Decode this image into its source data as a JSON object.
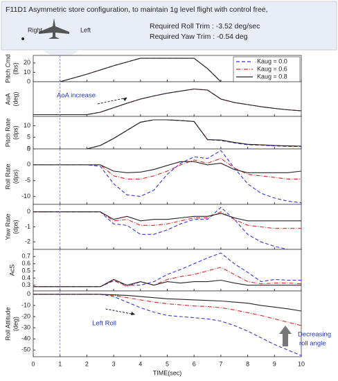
{
  "header": {
    "title": "F11D1 Asymmetric store configuration, to maintain 1g level flight with control free,",
    "left_label": "Right",
    "right_label": "Left",
    "trims": [
      "Required Roll Trim  : -3.52 deg/sec",
      "Required Yaw Trim  : -0.54 deg"
    ]
  },
  "time_marker": 1,
  "chart_data": [
    {
      "type": "line",
      "ylabel": [
        "Pitch Cmd",
        "(lbs)"
      ],
      "xlim": [
        0,
        10
      ],
      "ylim": [
        0,
        28
      ],
      "yticks": [
        0,
        10,
        20
      ],
      "legend": "upper right",
      "x": [
        0,
        0.5,
        1,
        1.5,
        2,
        2.5,
        3,
        3.5,
        4,
        4.5,
        5,
        5.5,
        6,
        6.5,
        7,
        7.5,
        8,
        8.5,
        9,
        9.5,
        10
      ],
      "series": [
        {
          "name": "Kaug = 0.0",
          "color": "#3333dd",
          "dash": "5,3",
          "values": [
            0,
            0,
            0,
            4,
            8,
            12.5,
            17,
            21,
            25,
            25,
            25,
            25,
            25,
            14,
            0,
            0,
            0,
            0,
            0,
            0,
            0
          ]
        },
        {
          "name": "Kaug = 0.6",
          "color": "#dd2222",
          "dash": "6,2,1,2",
          "values": [
            0,
            0,
            0,
            4,
            8,
            12.5,
            17,
            21,
            25,
            25,
            25,
            25,
            25,
            14,
            0,
            0,
            0,
            0,
            0,
            0,
            0
          ]
        },
        {
          "name": "Kaug = 0.8",
          "color": "#222222",
          "dash": "",
          "values": [
            0,
            0,
            0,
            4,
            8,
            12.5,
            17,
            21,
            25,
            25,
            25,
            25,
            25,
            14,
            0,
            0,
            0,
            0,
            0,
            0,
            0
          ]
        }
      ]
    },
    {
      "type": "line",
      "ylabel": [
        "AoA",
        "(deg)"
      ],
      "xlim": [
        0,
        10
      ],
      "ylim": [
        0,
        10
      ],
      "annotation": "AoA increase",
      "x": [
        0,
        0.5,
        1,
        1.5,
        2,
        2.5,
        3,
        3.5,
        4,
        4.5,
        5,
        5.5,
        6,
        6.5,
        7,
        7.5,
        8,
        8.5,
        9,
        9.5,
        10
      ],
      "series": [
        {
          "color": "#3333dd",
          "dash": "5,3",
          "values": [
            0.5,
            0.5,
            0.5,
            0.5,
            0.5,
            1.2,
            2.5,
            3.8,
            5,
            5.9,
            6.7,
            7.3,
            7.9,
            7.6,
            5,
            4,
            3.4,
            2.8,
            2.3,
            1.9,
            1.6
          ]
        },
        {
          "color": "#dd2222",
          "dash": "6,2,1,2",
          "values": [
            0.5,
            0.5,
            0.5,
            0.5,
            0.5,
            1.2,
            2.5,
            3.8,
            5,
            5.9,
            6.7,
            7.3,
            7.9,
            7.6,
            5,
            4,
            3.4,
            2.8,
            2.3,
            1.9,
            1.6
          ]
        },
        {
          "color": "#222222",
          "dash": "",
          "values": [
            0.5,
            0.5,
            0.5,
            0.5,
            0.5,
            1.2,
            2.5,
            3.8,
            5,
            5.9,
            6.7,
            7.3,
            7.9,
            7.6,
            5,
            4,
            3.4,
            2.8,
            2.3,
            1.9,
            1.6
          ]
        }
      ]
    },
    {
      "type": "line",
      "ylabel": [
        "Pitch Rate",
        "(dps)"
      ],
      "xlim": [
        0,
        10
      ],
      "ylim": [
        0,
        14
      ],
      "yticks": [
        0,
        5,
        10
      ],
      "x": [
        0,
        0.5,
        1,
        1.5,
        2,
        2.5,
        3,
        3.5,
        4,
        4.5,
        5,
        5.5,
        6,
        6.5,
        7,
        7.5,
        8,
        8.5,
        9,
        9.5,
        10
      ],
      "series": [
        {
          "color": "#3333dd",
          "dash": "5,3",
          "values": [
            0,
            0,
            0,
            0,
            0,
            1.5,
            4.5,
            8,
            11.5,
            12.5,
            12.5,
            12.2,
            11.8,
            4,
            3.6,
            2.6,
            1.8,
            1.6,
            1.3,
            1.1,
            1
          ]
        },
        {
          "color": "#dd2222",
          "dash": "6,2,1,2",
          "values": [
            0,
            0,
            0,
            0,
            0,
            1.5,
            4.5,
            8,
            11.5,
            12.5,
            12.5,
            12.2,
            11.8,
            4,
            3.8,
            2.8,
            2,
            1.8,
            1.5,
            1.3,
            1.2
          ]
        },
        {
          "color": "#222222",
          "dash": "",
          "values": [
            0,
            0,
            0,
            0,
            0,
            1.5,
            4.5,
            8,
            11.5,
            12.5,
            12.5,
            12.2,
            11.8,
            4,
            3.8,
            2.8,
            2,
            1.8,
            1.5,
            1.3,
            1.2
          ]
        }
      ]
    },
    {
      "type": "line",
      "ylabel": [
        "Roll Rate",
        "(dps)"
      ],
      "xlim": [
        0,
        10
      ],
      "ylim": [
        -12.5,
        5
      ],
      "yticks": [
        5,
        0,
        -5,
        -10
      ],
      "x": [
        0,
        0.5,
        1,
        1.5,
        2,
        2.5,
        3,
        3.5,
        4,
        4.5,
        5,
        5.5,
        6,
        6.5,
        7,
        7.5,
        8,
        8.5,
        9,
        9.5,
        10
      ],
      "series": [
        {
          "color": "#3333dd",
          "dash": "5,3",
          "values": [
            0,
            0,
            0,
            0,
            0,
            -0.5,
            -6,
            -9.5,
            -10,
            -8,
            -3,
            0.5,
            2.5,
            2,
            4.5,
            -1,
            -6,
            -9,
            -10.5,
            -11.5,
            -12
          ]
        },
        {
          "color": "#dd2222",
          "dash": "6,2,1,2",
          "values": [
            0,
            0,
            0,
            0,
            0,
            0,
            -3.5,
            -4.5,
            -4.5,
            -3.5,
            -2,
            0,
            1.5,
            0.5,
            2,
            -1,
            -3,
            -3.5,
            -4,
            -4.5,
            -4.5
          ]
        },
        {
          "color": "#222222",
          "dash": "",
          "values": [
            0,
            0,
            0,
            0,
            0,
            0,
            -2,
            -2.5,
            -2.3,
            -1.5,
            -0.2,
            1,
            1,
            0,
            0.5,
            -1.5,
            -2.5,
            -2.5,
            -2.5,
            -2.5,
            -2
          ]
        }
      ]
    },
    {
      "type": "line",
      "ylabel": [
        "Yaw Rate",
        "(dps)"
      ],
      "xlim": [
        0,
        10
      ],
      "ylim": [
        -2.5,
        0.5
      ],
      "yticks": [
        0,
        -1,
        -2
      ],
      "x": [
        0,
        0.5,
        1,
        1.5,
        2,
        2.5,
        3,
        3.5,
        4,
        4.5,
        5,
        5.5,
        6,
        6.5,
        7,
        7.5,
        8,
        8.5,
        9,
        9.5,
        10
      ],
      "series": [
        {
          "color": "#3333dd",
          "dash": "5,3",
          "values": [
            0,
            0,
            0,
            0,
            0,
            0,
            -0.8,
            -0.9,
            -1.5,
            -1.5,
            -1.2,
            -0.8,
            -0.5,
            -0.5,
            0.3,
            -0.5,
            -1.5,
            -2,
            -2.3,
            -2.5,
            -2.5
          ]
        },
        {
          "color": "#dd2222",
          "dash": "6,2,1,2",
          "values": [
            0,
            0,
            0,
            0,
            0,
            0,
            -0.6,
            -0.5,
            -0.9,
            -0.9,
            -0.8,
            -0.6,
            -0.4,
            -0.4,
            0,
            -0.5,
            -0.9,
            -1,
            -1.1,
            -1.1,
            -1.1
          ]
        },
        {
          "color": "#222222",
          "dash": "",
          "values": [
            0,
            0,
            0,
            0,
            0,
            0,
            -0.5,
            -0.3,
            -0.6,
            -0.5,
            -0.5,
            -0.4,
            -0.3,
            -0.3,
            -0.1,
            -0.4,
            -0.6,
            -0.6,
            -0.6,
            -0.6,
            -0.6
          ]
        }
      ]
    },
    {
      "type": "line",
      "ylabel": [
        "AcS"
      ],
      "xlim": [
        0,
        10
      ],
      "ylim": [
        0.22,
        0.8
      ],
      "yticks": [
        0.3,
        0.4,
        0.5,
        0.6,
        0.7
      ],
      "x": [
        0,
        0.5,
        1,
        1.5,
        2,
        2.5,
        3,
        3.5,
        4,
        4.5,
        5,
        5.5,
        6,
        6.5,
        7,
        7.5,
        8,
        8.5,
        9,
        9.5,
        10
      ],
      "series": [
        {
          "color": "#3333dd",
          "dash": "5,3",
          "values": [
            0.28,
            0.28,
            0.28,
            0.28,
            0.28,
            0.28,
            0.36,
            0.3,
            0.3,
            0.35,
            0.45,
            0.52,
            0.6,
            0.68,
            0.75,
            0.6,
            0.48,
            0.35,
            0.38,
            0.37,
            0.37
          ]
        },
        {
          "color": "#dd2222",
          "dash": "6,2,1,2",
          "values": [
            0.28,
            0.28,
            0.28,
            0.28,
            0.28,
            0.28,
            0.37,
            0.28,
            0.35,
            0.3,
            0.38,
            0.42,
            0.45,
            0.5,
            0.55,
            0.45,
            0.35,
            0.32,
            0.33,
            0.33,
            0.32
          ]
        },
        {
          "color": "#222222",
          "dash": "",
          "values": [
            0.28,
            0.28,
            0.28,
            0.28,
            0.28,
            0.28,
            0.38,
            0.3,
            0.35,
            0.3,
            0.35,
            0.33,
            0.35,
            0.35,
            0.37,
            0.33,
            0.3,
            0.3,
            0.3,
            0.3,
            0.3
          ]
        }
      ]
    },
    {
      "type": "line",
      "ylabel": [
        "Roll Attitude",
        "(deg)"
      ],
      "xlabel": "TIME(sec)",
      "xlim": [
        0,
        10
      ],
      "ylim": [
        -56,
        3
      ],
      "yticks": [
        0,
        -10,
        -20,
        -30,
        -40,
        -50
      ],
      "xticks": [
        0,
        1,
        2,
        3,
        4,
        5,
        6,
        7,
        8,
        9,
        10
      ],
      "annotations": [
        "Left Roll",
        "Decreasing",
        "roll angle"
      ],
      "x": [
        0,
        0.5,
        1,
        1.5,
        2,
        2.5,
        3,
        3.5,
        4,
        4.5,
        5,
        5.5,
        6,
        6.5,
        7,
        7.5,
        8,
        8.5,
        9,
        9.5,
        10
      ],
      "series": [
        {
          "color": "#3333dd",
          "dash": "5,3",
          "values": [
            0,
            0,
            0,
            0,
            0,
            0,
            -2,
            -7,
            -12,
            -16,
            -19,
            -20,
            -21,
            -22,
            -24,
            -28,
            -33,
            -39,
            -45,
            -50,
            -55
          ]
        },
        {
          "color": "#dd2222",
          "dash": "6,2,1,2",
          "values": [
            0,
            0,
            0,
            0,
            0,
            0,
            -1,
            -3,
            -5,
            -7,
            -8.5,
            -9.5,
            -10.5,
            -11,
            -12,
            -14,
            -16.5,
            -19,
            -22,
            -25,
            -28
          ]
        },
        {
          "color": "#222222",
          "dash": "",
          "values": [
            0,
            0,
            0,
            0,
            0,
            0,
            -0.5,
            -1,
            -2,
            -3,
            -4,
            -4.5,
            -5,
            -5.5,
            -6,
            -7,
            -8,
            -10,
            -11.5,
            -13,
            -15
          ]
        }
      ]
    }
  ]
}
